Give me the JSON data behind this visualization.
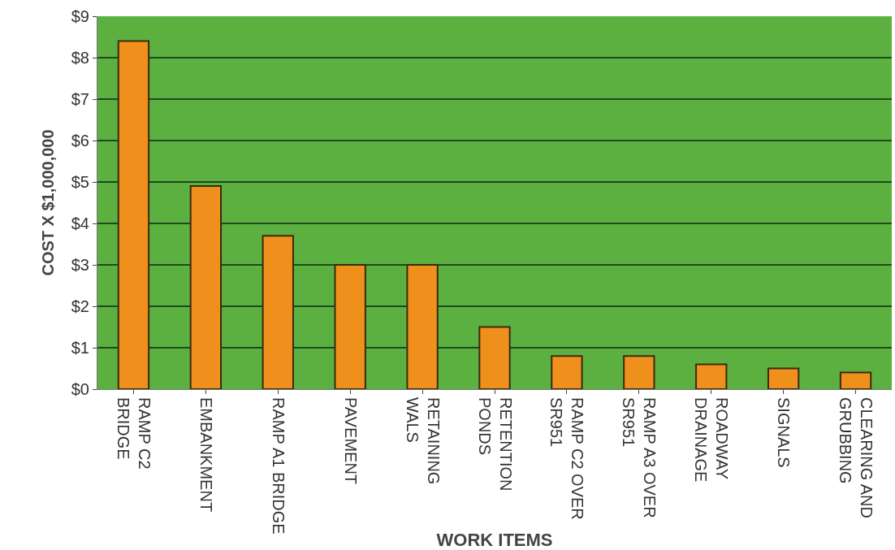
{
  "chart_data": {
    "type": "bar",
    "xlabel": "WORK ITEMS",
    "ylabel": "COST X $1,000,000",
    "categories": [
      "RAMP C2\nBRIDGE",
      "EMBANKMENT",
      "RAMP A1 BRIDGE",
      "PAVEMENT",
      "RETAINING\nWALS",
      "RETENTION\nPONDS",
      "RAMP C2 OVER\nSR951",
      "RAMP A3 OVER\nSR951",
      "ROADWAY\nDRAINAGE",
      "SIGNALS",
      "CLEARING AND\nGRUBBING"
    ],
    "values": [
      8.4,
      4.9,
      3.7,
      3.0,
      3.0,
      1.5,
      0.8,
      0.8,
      0.6,
      0.5,
      0.4
    ],
    "color": "#f0901c",
    "ylim": [
      0,
      9
    ],
    "yticks": [
      {
        "value": 0,
        "label": "$0"
      },
      {
        "value": 1,
        "label": "$1"
      },
      {
        "value": 2,
        "label": "$2"
      },
      {
        "value": 3,
        "label": "$3"
      },
      {
        "value": 4,
        "label": "$4"
      },
      {
        "value": 5,
        "label": "$5"
      },
      {
        "value": 6,
        "label": "$6"
      },
      {
        "value": 7,
        "label": "$7"
      },
      {
        "value": 8,
        "label": "$8"
      },
      {
        "value": 9,
        "label": "$9"
      }
    ],
    "grid": "y"
  }
}
